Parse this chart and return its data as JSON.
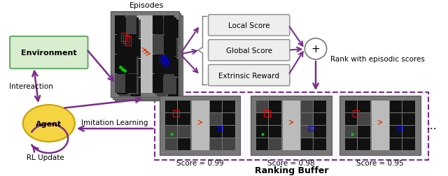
{
  "bg_color": "#ffffff",
  "purple": "#7B2D8B",
  "env_label": "Environment",
  "agent_label": "Agent",
  "episodes_label": "Episodes",
  "score_box_labels": [
    "Local Score",
    "Global Score",
    "Extrinsic Reward"
  ],
  "rank_text": "Rank with episodic scores",
  "imitation_text": "Imitation Learning",
  "interaction_text": "Intereaction",
  "rl_update_text": "RL Update",
  "ranking_buffer_label": "Ranking Buffer",
  "score_labels": [
    "Score = 0.99",
    "Score = 0.98",
    "Score = 0.95"
  ],
  "dots_text": "...",
  "env_fc": "#d8eecf",
  "env_ec": "#6aaa6a",
  "agent_fc": "#f5d442",
  "agent_ec": "#c8a000"
}
